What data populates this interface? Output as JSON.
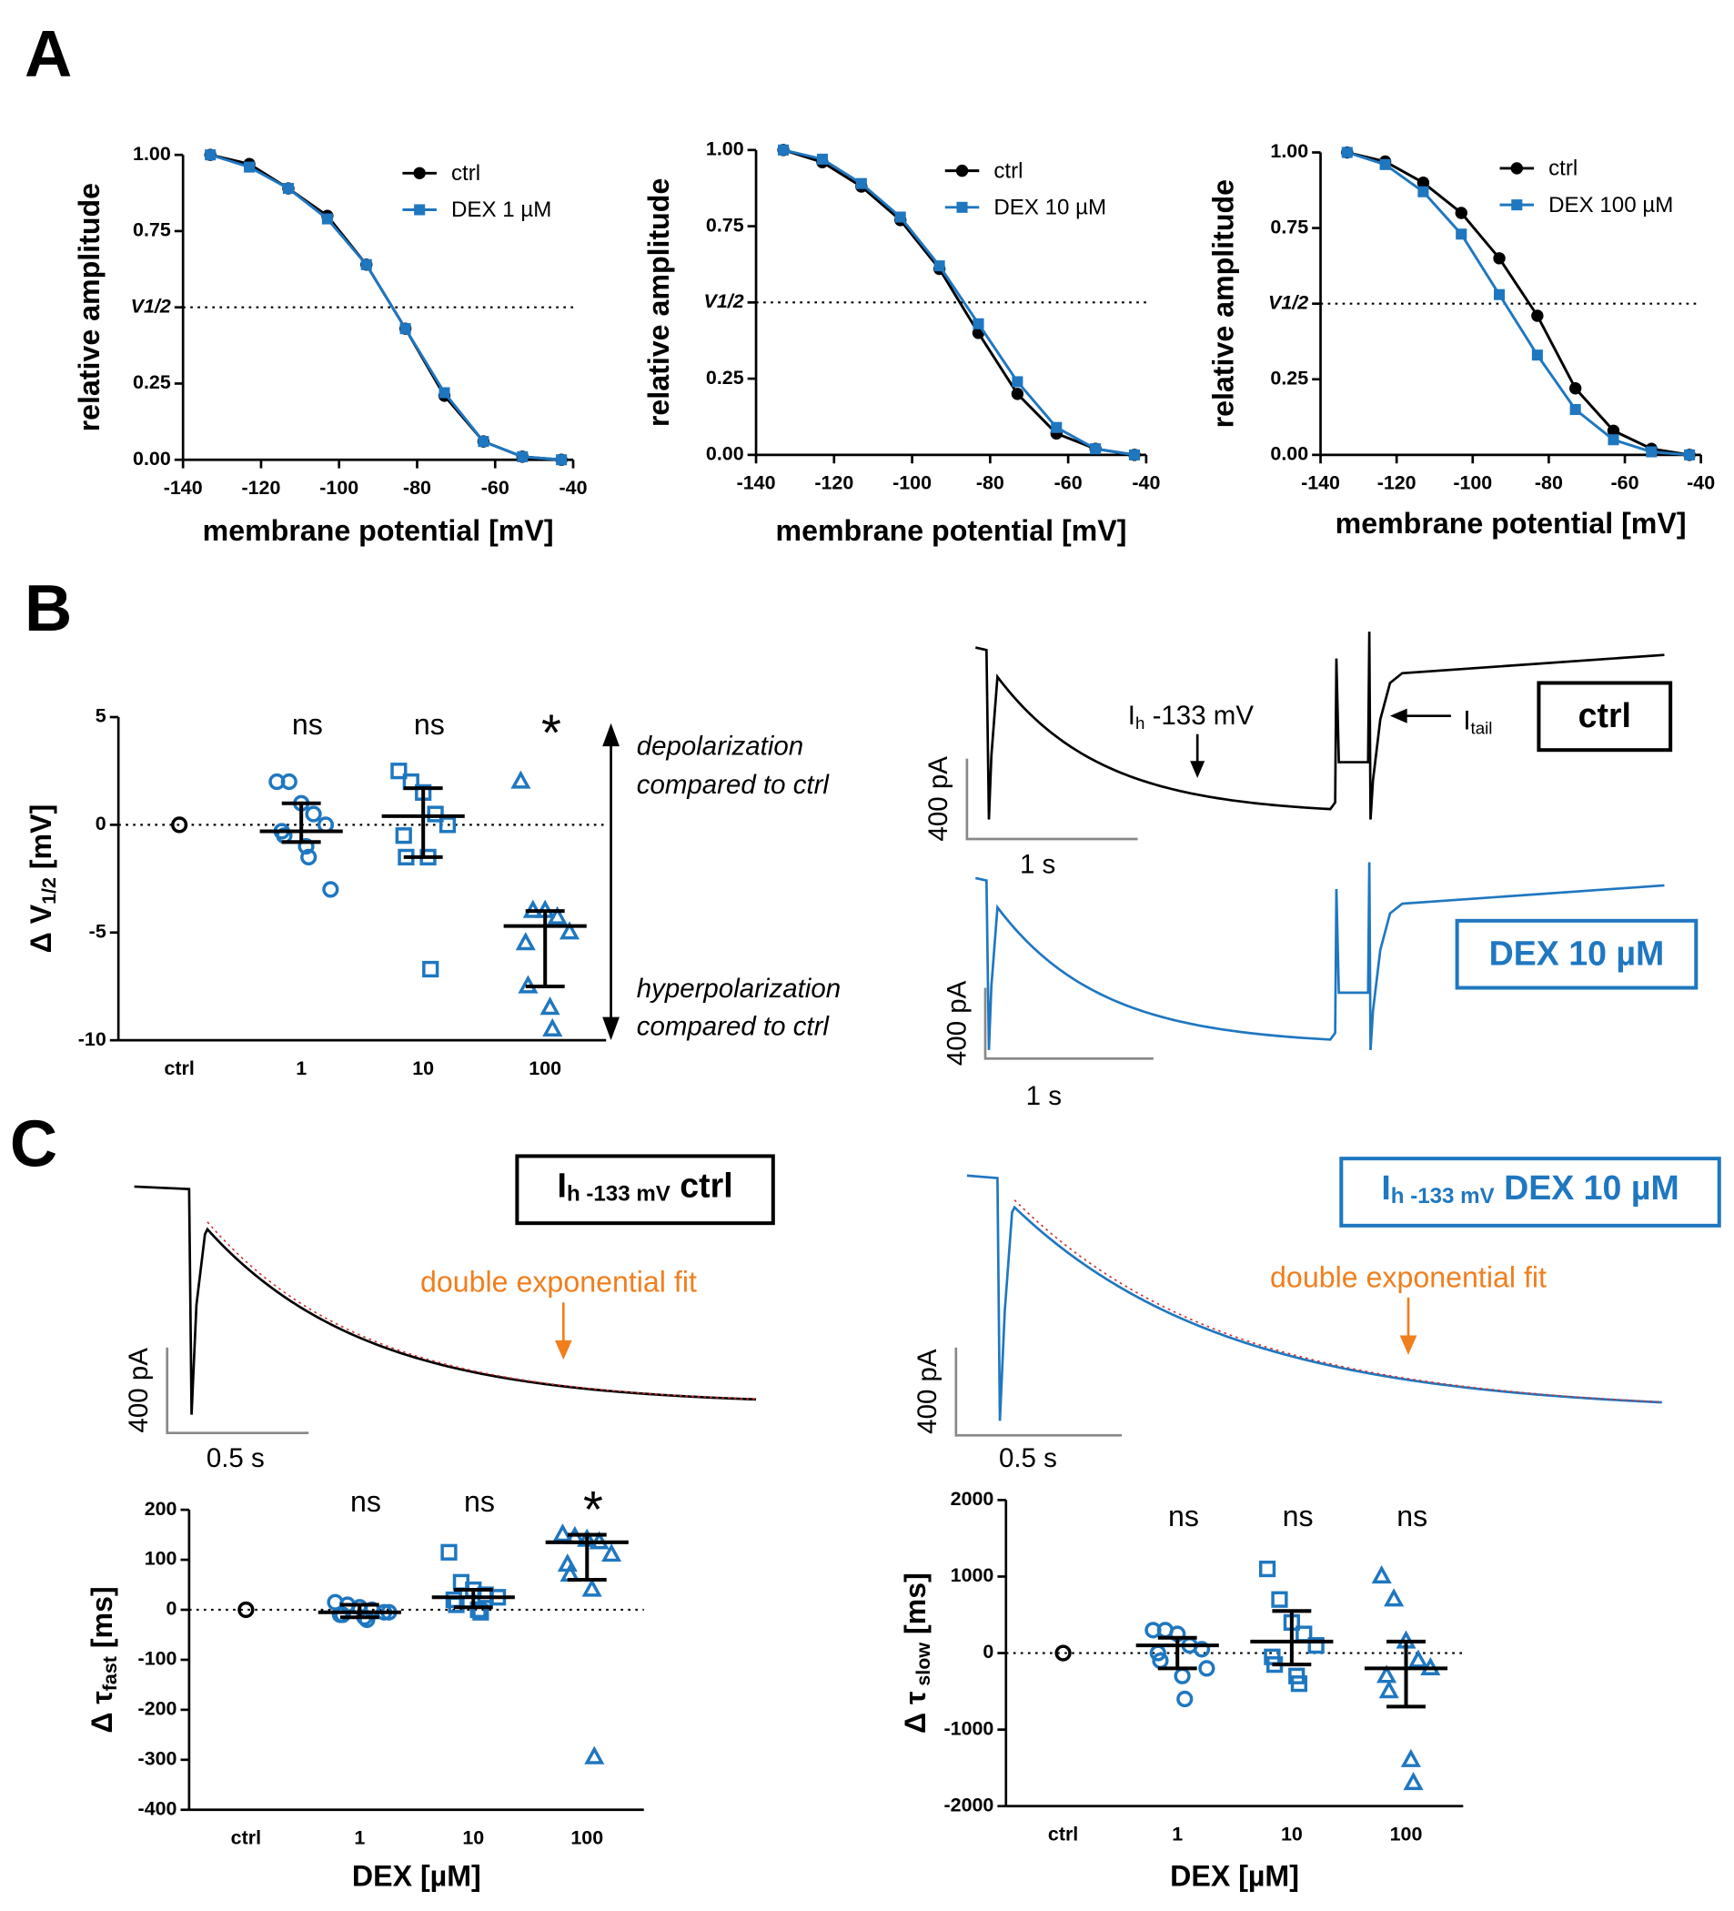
{
  "panel_labels": [
    "A",
    "B",
    "C"
  ],
  "chart_data": [
    {
      "type": "line",
      "x": [
        -133,
        -123,
        -113,
        -103,
        -93,
        -83,
        -73,
        -63,
        -53,
        -43
      ],
      "series": [
        {
          "name": "ctrl",
          "color": "#000000",
          "marker": "circle",
          "values": [
            1.0,
            0.97,
            0.89,
            0.8,
            0.64,
            0.43,
            0.21,
            0.06,
            0.01,
            0.0
          ]
        },
        {
          "name": "DEX 1 µM",
          "color": "#1f77c0",
          "marker": "square",
          "values": [
            1.0,
            0.96,
            0.89,
            0.79,
            0.64,
            0.43,
            0.22,
            0.06,
            0.01,
            0.0
          ]
        }
      ],
      "xlim": [
        -140,
        -40
      ],
      "xticks": [
        -140,
        -120,
        -100,
        -80,
        -60,
        -40
      ],
      "ylim": [
        0,
        1
      ],
      "yticks": [
        {
          "value": 0,
          "label": "0.00"
        },
        0.25,
        {
          "value": 0.5,
          "label": "V1/2"
        },
        0.75,
        {
          "value": 1,
          "label": "1.00"
        }
      ],
      "hline": 0.5,
      "xlabel": "membrane potential [mV]",
      "ylabel": "relative amplitude"
    },
    {
      "type": "line",
      "x": [
        -133,
        -123,
        -113,
        -103,
        -93,
        -83,
        -73,
        -63,
        -53,
        -43
      ],
      "series": [
        {
          "name": "ctrl",
          "color": "#000000",
          "marker": "circle",
          "values": [
            1.0,
            0.96,
            0.88,
            0.77,
            0.61,
            0.4,
            0.2,
            0.07,
            0.02,
            0.0
          ]
        },
        {
          "name": "DEX 10 µM",
          "color": "#1f77c0",
          "marker": "square",
          "values": [
            1.0,
            0.97,
            0.89,
            0.78,
            0.62,
            0.43,
            0.24,
            0.09,
            0.02,
            0.0
          ]
        }
      ],
      "xlim": [
        -140,
        -40
      ],
      "xticks": [
        -140,
        -120,
        -100,
        -80,
        -60,
        -40
      ],
      "ylim": [
        0,
        1
      ],
      "yticks": [
        {
          "value": 0,
          "label": "0.00"
        },
        0.25,
        {
          "value": 0.5,
          "label": "V1/2"
        },
        0.75,
        {
          "value": 1,
          "label": "1.00"
        }
      ],
      "hline": 0.5,
      "xlabel": "membrane potential [mV]",
      "ylabel": "relative amplitude"
    },
    {
      "type": "line",
      "x": [
        -133,
        -123,
        -113,
        -103,
        -93,
        -83,
        -73,
        -63,
        -53,
        -43
      ],
      "series": [
        {
          "name": "ctrl",
          "color": "#000000",
          "marker": "circle",
          "values": [
            1.0,
            0.97,
            0.9,
            0.8,
            0.65,
            0.46,
            0.22,
            0.08,
            0.02,
            0.0
          ]
        },
        {
          "name": "DEX 100 µM",
          "color": "#1f77c0",
          "marker": "square",
          "values": [
            1.0,
            0.96,
            0.87,
            0.73,
            0.53,
            0.33,
            0.15,
            0.05,
            0.01,
            0.0
          ]
        }
      ],
      "xlim": [
        -140,
        -40
      ],
      "xticks": [
        -140,
        -120,
        -100,
        -80,
        -60,
        -40
      ],
      "ylim": [
        0,
        1
      ],
      "yticks": [
        {
          "value": 0,
          "label": "0.00"
        },
        0.25,
        {
          "value": 0.5,
          "label": "V1/2"
        },
        0.75,
        {
          "value": 1,
          "label": "1.00"
        }
      ],
      "hline": 0.5,
      "xlabel": "membrane potential [mV]",
      "ylabel": "relative amplitude"
    },
    {
      "type": "scatter",
      "categories": [
        "ctrl",
        "1",
        "10",
        "100"
      ],
      "groups": [
        {
          "marker": "circle",
          "color": "#000000",
          "values": [
            0
          ]
        },
        {
          "marker": "circle",
          "color": "#1f77c0",
          "values": [
            2.0,
            2.0,
            1.0,
            0.5,
            0,
            -0.3,
            -0.5,
            -1.0,
            -1.5,
            -3.0
          ],
          "center": -0.3,
          "upper": 1.0,
          "lower": -0.8
        },
        {
          "marker": "square",
          "color": "#1f77c0",
          "values": [
            2.5,
            2.0,
            1.5,
            0.5,
            0,
            -0.5,
            -1.5,
            -1.5,
            -6.7
          ],
          "center": 0.4,
          "upper": 1.7,
          "lower": -1.5
        },
        {
          "marker": "triangle",
          "color": "#1f77c0",
          "values": [
            2.0,
            -4.0,
            -4.0,
            -4.3,
            -5.0,
            -5.5,
            -7.5,
            -8.5,
            -9.5
          ],
          "center": -4.7,
          "upper": -4.0,
          "lower": -7.5
        }
      ],
      "annotations": [
        null,
        "ns",
        "ns",
        "*"
      ],
      "ylim": [
        -10,
        5
      ],
      "yticks": [
        -10,
        -5,
        0,
        5
      ],
      "hline": 0,
      "ylabel": {
        "main": "Δ V",
        "sub": "1/2",
        "rest": " [mV]"
      },
      "arrow_up_label": [
        "depolarization",
        "compared to ctrl"
      ],
      "arrow_down_label": [
        "hyperpolarization",
        "compared to ctrl"
      ]
    },
    {
      "type": "scatter",
      "categories": [
        "ctrl",
        "1",
        "10",
        "100"
      ],
      "groups": [
        {
          "marker": "circle",
          "color": "#000000",
          "values": [
            0
          ]
        },
        {
          "marker": "circle",
          "color": "#1f77c0",
          "values": [
            15,
            10,
            5,
            0,
            -5,
            -10,
            -10,
            -15,
            -20,
            -5
          ],
          "center": -5,
          "upper": 10,
          "lower": -15
        },
        {
          "marker": "square",
          "color": "#1f77c0",
          "values": [
            115,
            55,
            40,
            30,
            25,
            20,
            10,
            0,
            -5
          ],
          "center": 25,
          "upper": 40,
          "lower": 5
        },
        {
          "marker": "triangle",
          "color": "#1f77c0",
          "values": [
            150,
            145,
            140,
            135,
            110,
            90,
            70,
            40,
            -295
          ],
          "center": 135,
          "upper": 150,
          "lower": 60
        }
      ],
      "annotations": [
        null,
        "ns",
        "ns",
        "*"
      ],
      "ylim": [
        -400,
        200
      ],
      "yticks": [
        -400,
        -300,
        -200,
        -100,
        0,
        100,
        200
      ],
      "hline": 0,
      "xlabel": "DEX [µM]",
      "ylabel": {
        "main": "Δ τ",
        "sub": "fast",
        "rest": " [ms]"
      }
    },
    {
      "type": "scatter",
      "categories": [
        "ctrl",
        "1",
        "10",
        "100"
      ],
      "groups": [
        {
          "marker": "circle",
          "color": "#000000",
          "values": [
            0
          ]
        },
        {
          "marker": "circle",
          "color": "#1f77c0",
          "values": [
            300,
            300,
            250,
            100,
            50,
            0,
            -100,
            -300,
            -600,
            -200
          ],
          "center": 100,
          "upper": 200,
          "lower": -200
        },
        {
          "marker": "square",
          "color": "#1f77c0",
          "values": [
            1100,
            700,
            400,
            250,
            100,
            -50,
            -150,
            -300,
            -400
          ],
          "center": 150,
          "upper": 550,
          "lower": -150
        },
        {
          "marker": "triangle",
          "color": "#1f77c0",
          "values": [
            1000,
            700,
            150,
            -100,
            -200,
            -300,
            -500,
            -1400,
            -1700
          ],
          "center": -200,
          "upper": 150,
          "lower": -700
        }
      ],
      "annotations": [
        null,
        "ns",
        "ns",
        "ns"
      ],
      "ylim": [
        -2000,
        2000
      ],
      "yticks": [
        -2000,
        -1000,
        0,
        1000,
        2000
      ],
      "hline": 0,
      "xlabel": "DEX [µM]",
      "ylabel": {
        "main": "Δ τ",
        "sub": " slow",
        "rest": " [ms]"
      }
    }
  ],
  "traces_b": {
    "ih_label": {
      "main": "I",
      "sub": "h",
      "rest": " -133 mV"
    },
    "itail_label": {
      "main": "I",
      "sub": "tail"
    },
    "recordings": [
      {
        "box": "ctrl",
        "scale_y": "400 pA",
        "scale_x": "1 s"
      },
      {
        "box": "DEX 10 µM",
        "scale_y": "400 pA",
        "scale_x": "1 s"
      }
    ]
  },
  "traces_c": [
    {
      "box": {
        "main": "I",
        "sub": "h -133 mV",
        "rest": " ctrl"
      },
      "annotation": "double exponential fit",
      "scale_y": "400 pA",
      "scale_x": "0.5 s"
    },
    {
      "box": {
        "main": "I",
        "sub": "h -133 mV",
        "rest": " DEX 10 µM"
      },
      "annotation": "double exponential fit",
      "scale_y": "400 pA",
      "scale_x": "0.5 s"
    }
  ]
}
